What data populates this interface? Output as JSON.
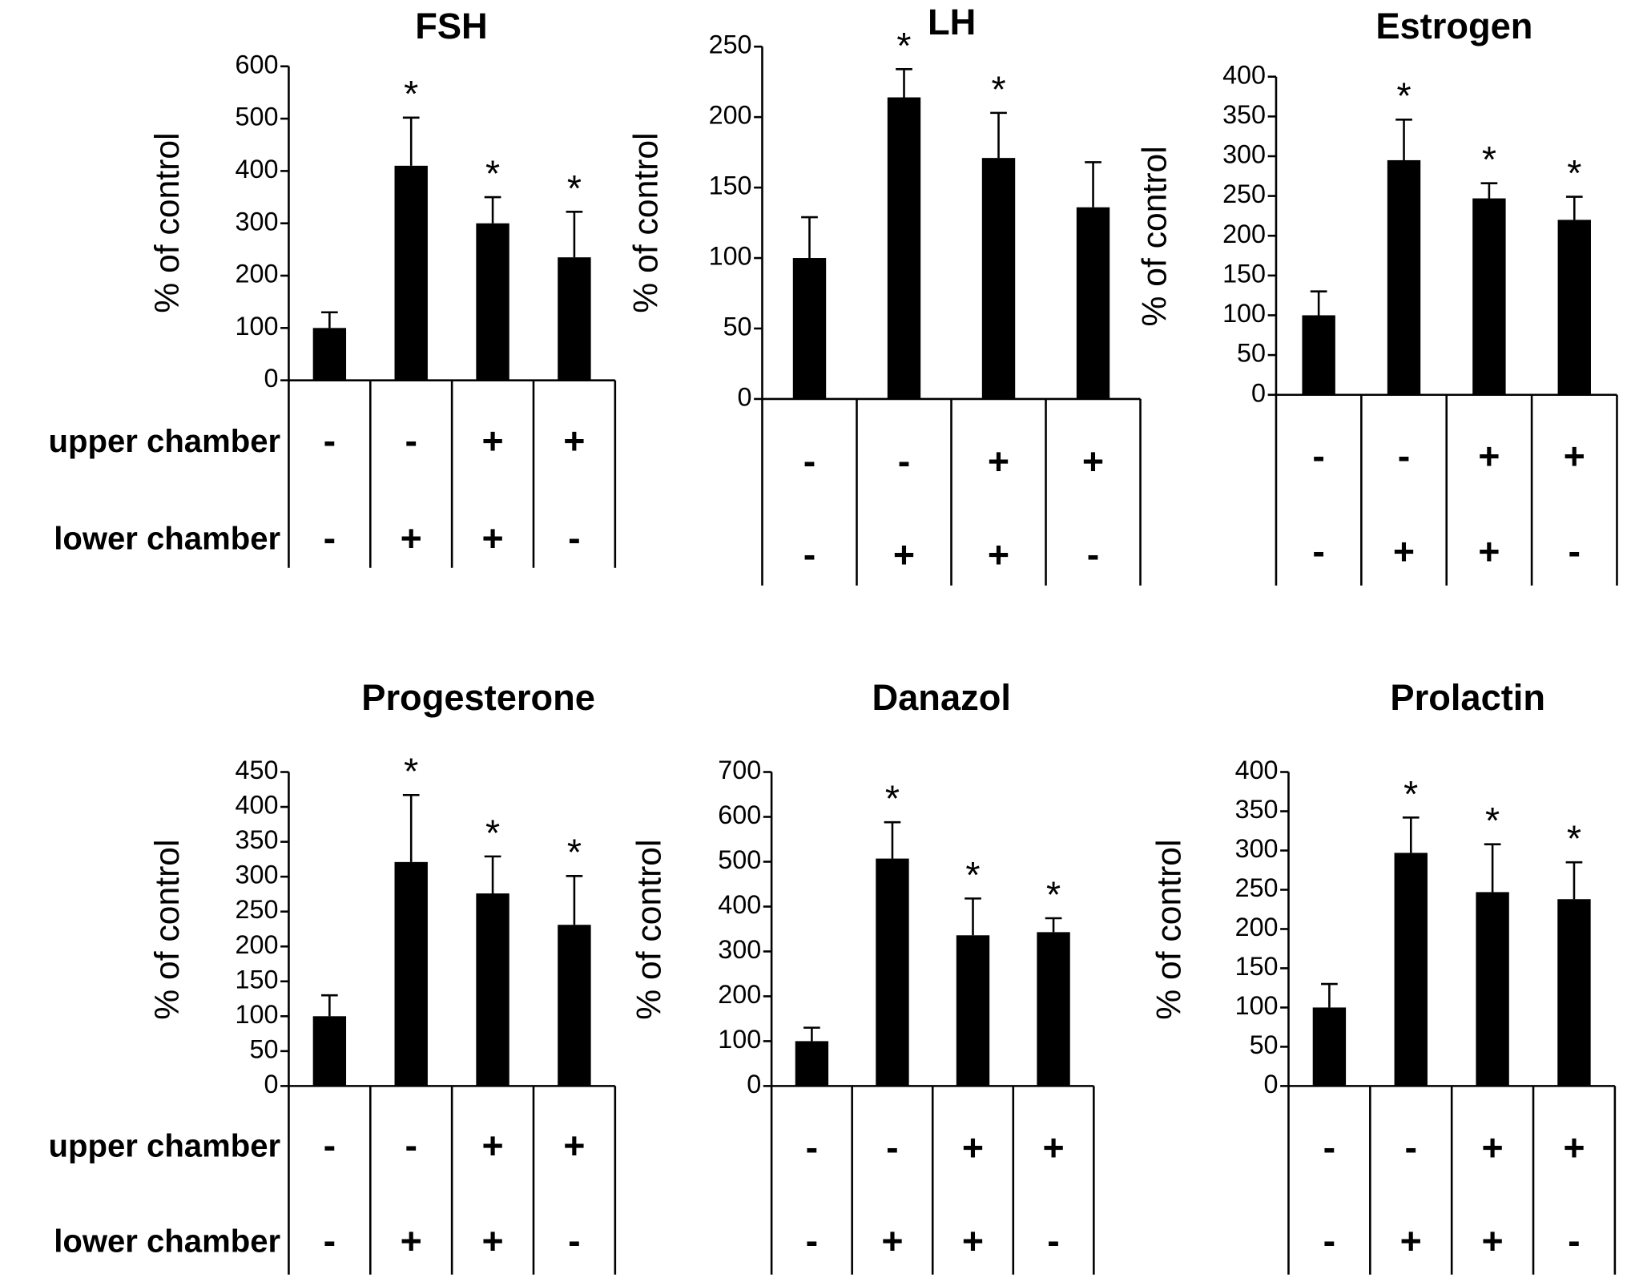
{
  "chart_data": [
    {
      "type": "bar",
      "title": "FSH",
      "ylabel": "% of control",
      "ylim": [
        0,
        600
      ],
      "yticks": [
        0,
        100,
        200,
        300,
        400,
        500,
        600
      ],
      "color": "#000000",
      "values": [
        100,
        410,
        300,
        235
      ],
      "errors": [
        30,
        92,
        50,
        87
      ],
      "annotations": [
        null,
        "*",
        "*",
        "*"
      ],
      "rows": [
        {
          "name": "upper chamber",
          "labels": [
            "-",
            "-",
            "+",
            "+"
          ]
        },
        {
          "name": "lower chamber",
          "labels": [
            "-",
            "+",
            "+",
            "-"
          ]
        }
      ]
    },
    {
      "type": "bar",
      "title": "LH",
      "ylabel": "% of control",
      "ylim": [
        0,
        250
      ],
      "yticks": [
        0,
        50,
        100,
        150,
        200,
        250
      ],
      "color": "#000000",
      "values": [
        100,
        214,
        171,
        136
      ],
      "errors": [
        29,
        20,
        32,
        32
      ],
      "annotations": [
        null,
        "*",
        "*",
        null
      ],
      "rows": [
        {
          "labels": [
            "-",
            "-",
            "+",
            "+"
          ]
        },
        {
          "labels": [
            "-",
            "+",
            "+",
            "-"
          ]
        }
      ]
    },
    {
      "type": "bar",
      "title": "Estrogen",
      "ylabel": "% of control",
      "ylim": [
        0,
        400
      ],
      "yticks": [
        0,
        50,
        100,
        150,
        200,
        250,
        300,
        350,
        400
      ],
      "color": "#000000",
      "values": [
        100,
        295,
        247,
        220
      ],
      "errors": [
        30,
        51,
        19,
        29
      ],
      "annotations": [
        null,
        "*",
        "*",
        "*"
      ],
      "rows": [
        {
          "labels": [
            "-",
            "-",
            "+",
            "+"
          ]
        },
        {
          "labels": [
            "-",
            "+",
            "+",
            "-"
          ]
        }
      ]
    },
    {
      "type": "bar",
      "title": "Progesterone",
      "ylabel": "% of control",
      "ylim": [
        0,
        450
      ],
      "yticks": [
        0,
        50,
        100,
        150,
        200,
        250,
        300,
        350,
        400,
        450
      ],
      "color": "#000000",
      "values": [
        100,
        321,
        276,
        231
      ],
      "errors": [
        30,
        96,
        53,
        70
      ],
      "annotations": [
        null,
        "*",
        "*",
        "*"
      ],
      "rows": [
        {
          "name": "upper chamber",
          "labels": [
            "-",
            "-",
            "+",
            "+"
          ]
        },
        {
          "name": "lower chamber",
          "labels": [
            "-",
            "+",
            "+",
            "-"
          ]
        }
      ]
    },
    {
      "type": "bar",
      "title": "Danazol",
      "ylabel": "% of control",
      "ylim": [
        0,
        700
      ],
      "yticks": [
        0,
        100,
        200,
        300,
        400,
        500,
        600,
        700
      ],
      "color": "#000000",
      "values": [
        100,
        507,
        336,
        343
      ],
      "errors": [
        30,
        81,
        82,
        31
      ],
      "annotations": [
        null,
        "*",
        "*",
        "*"
      ],
      "rows": [
        {
          "labels": [
            "-",
            "-",
            "+",
            "+"
          ]
        },
        {
          "labels": [
            "-",
            "+",
            "+",
            "-"
          ]
        }
      ]
    },
    {
      "type": "bar",
      "title": "Prolactin",
      "ylabel": "% of control",
      "ylim": [
        0,
        400
      ],
      "yticks": [
        0,
        50,
        100,
        150,
        200,
        250,
        300,
        350,
        400
      ],
      "color": "#000000",
      "values": [
        100,
        297,
        247,
        238
      ],
      "errors": [
        30,
        45,
        61,
        47
      ],
      "annotations": [
        null,
        "*",
        "*",
        "*"
      ],
      "rows": [
        {
          "labels": [
            "-",
            "-",
            "+",
            "+"
          ]
        },
        {
          "labels": [
            "-",
            "+",
            "+",
            "-"
          ]
        }
      ]
    }
  ]
}
